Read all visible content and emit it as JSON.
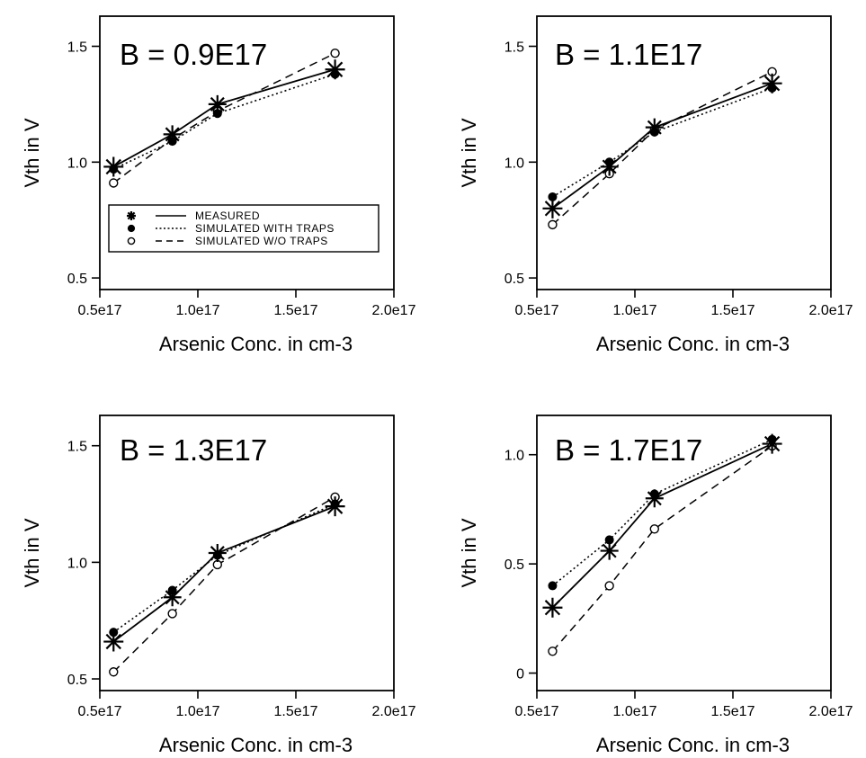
{
  "chart_data": [
    {
      "type": "line",
      "title": "B = 0.9E17",
      "xlabel": "Arsenic Conc. in cm-3",
      "ylabel": "Vth in V",
      "xlim": [
        0.5,
        2.0
      ],
      "ylim": [
        0.45,
        1.63
      ],
      "x_ticks": [
        0.5,
        1.0,
        1.5,
        2.0
      ],
      "x_tick_labels": [
        "0.5e17",
        "1.0e17",
        "1.5e17",
        "2.0e17"
      ],
      "y_ticks": [
        0.5,
        1.0,
        1.5
      ],
      "y_tick_labels": [
        "0.5",
        "1.0",
        "1.5"
      ],
      "x": [
        0.57,
        0.87,
        1.1,
        1.7
      ],
      "series": [
        {
          "name": "MEASURED",
          "values": [
            0.98,
            1.12,
            1.25,
            1.4
          ]
        },
        {
          "name": "SIMULATED WITH TRAPS",
          "values": [
            0.97,
            1.09,
            1.21,
            1.38
          ]
        },
        {
          "name": "SIMULATED W/O TRAPS",
          "values": [
            0.91,
            1.1,
            1.22,
            1.47
          ]
        }
      ],
      "legend": {
        "position": "middle-left",
        "entries": [
          "MEASURED",
          "SIMULATED WITH TRAPS",
          "SIMULATED W/O TRAPS"
        ]
      }
    },
    {
      "type": "line",
      "title": "B = 1.1E17",
      "xlabel": "Arsenic Conc. in cm-3",
      "ylabel": "Vth in V",
      "xlim": [
        0.5,
        2.0
      ],
      "ylim": [
        0.45,
        1.63
      ],
      "x_ticks": [
        0.5,
        1.0,
        1.5,
        2.0
      ],
      "x_tick_labels": [
        "0.5e17",
        "1.0e17",
        "1.5e17",
        "2.0e17"
      ],
      "y_ticks": [
        0.5,
        1.0,
        1.5
      ],
      "y_tick_labels": [
        "0.5",
        "1.0",
        "1.5"
      ],
      "x": [
        0.58,
        0.87,
        1.1,
        1.7
      ],
      "series": [
        {
          "name": "MEASURED",
          "values": [
            0.8,
            0.98,
            1.15,
            1.34
          ]
        },
        {
          "name": "SIMULATED WITH TRAPS",
          "values": [
            0.85,
            1.0,
            1.13,
            1.32
          ]
        },
        {
          "name": "SIMULATED W/O TRAPS",
          "values": [
            0.73,
            0.95,
            1.14,
            1.39
          ]
        }
      ]
    },
    {
      "type": "line",
      "title": "B = 1.3E17",
      "xlabel": "Arsenic Conc. in cm-3",
      "ylabel": "Vth in V",
      "xlim": [
        0.5,
        2.0
      ],
      "ylim": [
        0.45,
        1.63
      ],
      "x_ticks": [
        0.5,
        1.0,
        1.5,
        2.0
      ],
      "x_tick_labels": [
        "0.5e17",
        "1.0e17",
        "1.5e17",
        "2.0e17"
      ],
      "y_ticks": [
        0.5,
        1.0,
        1.5
      ],
      "y_tick_labels": [
        "0.5",
        "1.0",
        "1.5"
      ],
      "x": [
        0.57,
        0.87,
        1.1,
        1.7
      ],
      "series": [
        {
          "name": "MEASURED",
          "values": [
            0.66,
            0.85,
            1.04,
            1.24
          ]
        },
        {
          "name": "SIMULATED WITH TRAPS",
          "values": [
            0.7,
            0.88,
            1.03,
            1.25
          ]
        },
        {
          "name": "SIMULATED W/O TRAPS",
          "values": [
            0.53,
            0.78,
            0.99,
            1.28
          ]
        }
      ]
    },
    {
      "type": "line",
      "title": "B = 1.7E17",
      "xlabel": "Arsenic Conc. in cm-3",
      "ylabel": "Vth in V",
      "xlim": [
        0.5,
        2.0
      ],
      "ylim": [
        -0.08,
        1.18
      ],
      "x_ticks": [
        0.5,
        1.0,
        1.5,
        2.0
      ],
      "x_tick_labels": [
        "0.5e17",
        "1.0e17",
        "1.5e17",
        "2.0e17"
      ],
      "y_ticks": [
        0,
        0.5,
        1.0
      ],
      "y_tick_labels": [
        "0",
        "0.5",
        "1.0"
      ],
      "x": [
        0.58,
        0.87,
        1.1,
        1.7
      ],
      "series": [
        {
          "name": "MEASURED",
          "values": [
            0.3,
            0.56,
            0.8,
            1.05
          ]
        },
        {
          "name": "SIMULATED WITH TRAPS",
          "values": [
            0.4,
            0.61,
            0.82,
            1.07
          ]
        },
        {
          "name": "SIMULATED W/O TRAPS",
          "values": [
            0.1,
            0.4,
            0.66,
            1.04
          ]
        }
      ]
    }
  ]
}
